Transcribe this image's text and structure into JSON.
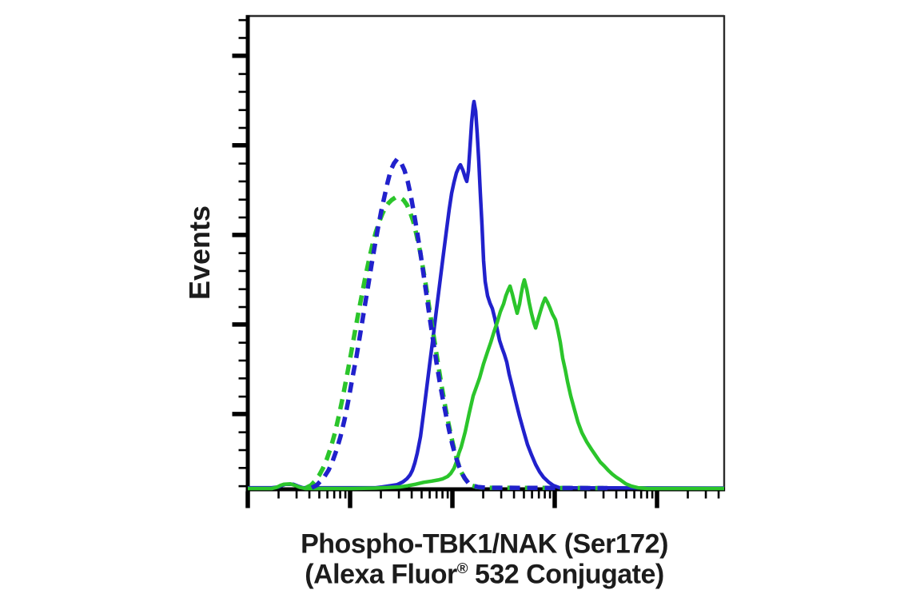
{
  "figure": {
    "background": "#ffffff"
  },
  "labels": {
    "y_axis": "Events",
    "x_axis_line1": "Phospho-TBK1/NAK (Ser172)",
    "x_axis_line2_pre": "(Alexa Fluor",
    "x_axis_line2_sup": "®",
    "x_axis_line2_post": " 532 Conjugate)"
  },
  "colors": {
    "blue": "#2121cc",
    "green": "#2bc52b",
    "axis": "#000000",
    "frame": "#2b2b2b",
    "text": "#1c1c1c"
  },
  "chart_data": {
    "type": "line",
    "title": "",
    "xlabel": "Phospho-TBK1/NAK (Ser172) (Alexa Fluor® 532 Conjugate)",
    "ylabel": "Events",
    "x_scale": "log",
    "x_units": "decades (fluorescence intensity, unlabeled log axis)",
    "x_range_decades": [
      0,
      4.656
    ],
    "y_scale": "linear",
    "y_units": "percent of maximum event count (unlabeled axis)",
    "y_range": [
      0,
      103
    ],
    "grid": false,
    "legend": null,
    "x_axis_ticks": {
      "majors_dec": [
        0,
        1,
        2,
        3,
        4
      ],
      "minor_log_offsets": [
        0.301,
        0.477,
        0.602,
        0.699,
        0.778,
        0.845,
        0.903,
        0.954
      ],
      "max_dec": 4.62
    },
    "y_axis_ticks": {
      "majors_pct": [
        19.4,
        42.5,
        65.6,
        88.7,
        111.8
      ],
      "minors_pct": [
        0.8,
        5.5,
        10.1,
        14.7,
        23.9,
        28.6,
        33.2,
        37.8,
        47.0,
        51.6,
        56.3,
        60.9,
        70.1,
        74.7,
        79.4,
        84.0,
        93.2,
        97.8,
        102.5,
        107.1,
        116.4,
        121.0
      ]
    },
    "series": [
      {
        "id": "histogram-blue-solid",
        "style": "solid",
        "color_key": "blue",
        "points": [
          [
            0,
            0.4
          ],
          [
            0.234,
            0.4
          ],
          [
            0.297,
            0.6
          ],
          [
            0.336,
            1.0
          ],
          [
            0.367,
            1.3
          ],
          [
            0.445,
            1.3
          ],
          [
            0.492,
            0.8
          ],
          [
            0.539,
            0.4
          ],
          [
            1.094,
            0.4
          ],
          [
            1.25,
            0.4
          ],
          [
            1.313,
            0.6
          ],
          [
            1.391,
            0.9
          ],
          [
            1.461,
            1.2
          ],
          [
            1.516,
            1.9
          ],
          [
            1.555,
            2.7
          ],
          [
            1.586,
            3.7
          ],
          [
            1.609,
            4.9
          ],
          [
            1.633,
            6.8
          ],
          [
            1.656,
            9.3
          ],
          [
            1.688,
            13.6
          ],
          [
            1.719,
            19.8
          ],
          [
            1.75,
            26.4
          ],
          [
            1.781,
            33.0
          ],
          [
            1.813,
            39.6
          ],
          [
            1.844,
            46.2
          ],
          [
            1.875,
            52.8
          ],
          [
            1.906,
            59.4
          ],
          [
            1.938,
            66.0
          ],
          [
            1.969,
            72.2
          ],
          [
            1.992,
            76.3
          ],
          [
            2.016,
            79.2
          ],
          [
            2.039,
            81.6
          ],
          [
            2.063,
            83.1
          ],
          [
            2.078,
            83.7
          ],
          [
            2.102,
            82.3
          ],
          [
            2.125,
            80.4
          ],
          [
            2.141,
            79.4
          ],
          [
            2.156,
            82.1
          ],
          [
            2.172,
            88.2
          ],
          [
            2.188,
            94.8
          ],
          [
            2.203,
            98.8
          ],
          [
            2.211,
            100.0
          ],
          [
            2.227,
            97.5
          ],
          [
            2.242,
            91.8
          ],
          [
            2.258,
            84.7
          ],
          [
            2.273,
            76.5
          ],
          [
            2.289,
            68.2
          ],
          [
            2.305,
            59.0
          ],
          [
            2.32,
            53.6
          ],
          [
            2.344,
            49.9
          ],
          [
            2.367,
            48.0
          ],
          [
            2.391,
            46.6
          ],
          [
            2.414,
            44.1
          ],
          [
            2.438,
            41.2
          ],
          [
            2.461,
            38.4
          ],
          [
            2.484,
            36.5
          ],
          [
            2.508,
            34.8
          ],
          [
            2.531,
            32.8
          ],
          [
            2.555,
            29.7
          ],
          [
            2.586,
            26.4
          ],
          [
            2.617,
            22.9
          ],
          [
            2.656,
            18.8
          ],
          [
            2.695,
            15.1
          ],
          [
            2.734,
            11.5
          ],
          [
            2.773,
            8.9
          ],
          [
            2.813,
            6.4
          ],
          [
            2.852,
            4.5
          ],
          [
            2.891,
            3.1
          ],
          [
            2.938,
            1.9
          ],
          [
            2.984,
            1.0
          ],
          [
            3.047,
            0.4
          ],
          [
            4.656,
            0.3
          ]
        ]
      },
      {
        "id": "histogram-green-solid",
        "style": "solid",
        "color_key": "green",
        "points": [
          [
            0,
            0.2
          ],
          [
            0.234,
            0.2
          ],
          [
            0.281,
            0.5
          ],
          [
            0.32,
            1.0
          ],
          [
            0.352,
            1.3
          ],
          [
            0.414,
            1.4
          ],
          [
            0.461,
            1.0
          ],
          [
            0.508,
            0.5
          ],
          [
            0.563,
            0.2
          ],
          [
            1.016,
            0.2
          ],
          [
            1.25,
            0.3
          ],
          [
            1.484,
            0.6
          ],
          [
            1.563,
            0.9
          ],
          [
            1.641,
            1.3
          ],
          [
            1.719,
            1.8
          ],
          [
            1.797,
            2.1
          ],
          [
            1.859,
            2.4
          ],
          [
            1.906,
            2.7
          ],
          [
            1.953,
            3.3
          ],
          [
            1.984,
            4.1
          ],
          [
            2.016,
            5.4
          ],
          [
            2.039,
            7.0
          ],
          [
            2.063,
            9.3
          ],
          [
            2.086,
            10.9
          ],
          [
            2.125,
            14.8
          ],
          [
            2.164,
            19.6
          ],
          [
            2.203,
            24.1
          ],
          [
            2.234,
            26.4
          ],
          [
            2.266,
            28.7
          ],
          [
            2.305,
            32.4
          ],
          [
            2.344,
            35.5
          ],
          [
            2.375,
            37.9
          ],
          [
            2.406,
            40.6
          ],
          [
            2.438,
            43.1
          ],
          [
            2.469,
            45.8
          ],
          [
            2.5,
            47.8
          ],
          [
            2.523,
            49.9
          ],
          [
            2.547,
            51.5
          ],
          [
            2.563,
            52.4
          ],
          [
            2.586,
            50.3
          ],
          [
            2.609,
            47.8
          ],
          [
            2.633,
            45.4
          ],
          [
            2.656,
            47.8
          ],
          [
            2.672,
            50.3
          ],
          [
            2.688,
            52.6
          ],
          [
            2.703,
            54.0
          ],
          [
            2.727,
            51.5
          ],
          [
            2.75,
            48.2
          ],
          [
            2.773,
            45.4
          ],
          [
            2.797,
            42.9
          ],
          [
            2.813,
            41.6
          ],
          [
            2.836,
            43.7
          ],
          [
            2.859,
            45.8
          ],
          [
            2.883,
            47.8
          ],
          [
            2.906,
            49.3
          ],
          [
            2.93,
            48.2
          ],
          [
            2.953,
            46.8
          ],
          [
            2.977,
            45.2
          ],
          [
            3.008,
            43.7
          ],
          [
            3.031,
            41.0
          ],
          [
            3.055,
            37.9
          ],
          [
            3.078,
            33.8
          ],
          [
            3.102,
            30.9
          ],
          [
            3.125,
            27.8
          ],
          [
            3.156,
            24.1
          ],
          [
            3.188,
            21.0
          ],
          [
            3.227,
            17.3
          ],
          [
            3.266,
            14.6
          ],
          [
            3.313,
            12.2
          ],
          [
            3.359,
            10.3
          ],
          [
            3.406,
            8.5
          ],
          [
            3.445,
            7.0
          ],
          [
            3.484,
            6.0
          ],
          [
            3.523,
            4.9
          ],
          [
            3.563,
            3.9
          ],
          [
            3.602,
            3.1
          ],
          [
            3.648,
            2.3
          ],
          [
            3.695,
            1.4
          ],
          [
            3.75,
            0.8
          ],
          [
            3.813,
            0.4
          ],
          [
            3.906,
            0.2
          ],
          [
            4.656,
            0.2
          ]
        ]
      },
      {
        "id": "histogram-green-dashed",
        "style": "dashed",
        "color_key": "green",
        "points": [
          [
            0.57,
            0.4
          ],
          [
            0.617,
            1.0
          ],
          [
            0.656,
            2.1
          ],
          [
            0.695,
            3.5
          ],
          [
            0.734,
            5.4
          ],
          [
            0.773,
            7.8
          ],
          [
            0.813,
            10.9
          ],
          [
            0.852,
            14.6
          ],
          [
            0.891,
            19.0
          ],
          [
            0.93,
            23.9
          ],
          [
            0.969,
            29.3
          ],
          [
            1.008,
            34.8
          ],
          [
            1.047,
            40.6
          ],
          [
            1.086,
            46.2
          ],
          [
            1.125,
            51.5
          ],
          [
            1.156,
            55.7
          ],
          [
            1.188,
            59.6
          ],
          [
            1.219,
            63.1
          ],
          [
            1.25,
            66.2
          ],
          [
            1.281,
            68.7
          ],
          [
            1.313,
            70.9
          ],
          [
            1.344,
            72.6
          ],
          [
            1.375,
            73.8
          ],
          [
            1.406,
            74.6
          ],
          [
            1.445,
            75.3
          ],
          [
            1.484,
            75.3
          ],
          [
            1.523,
            74.6
          ],
          [
            1.555,
            73.4
          ],
          [
            1.586,
            71.5
          ],
          [
            1.617,
            69.1
          ],
          [
            1.648,
            65.8
          ],
          [
            1.68,
            61.9
          ],
          [
            1.711,
            57.3
          ],
          [
            1.742,
            52.4
          ],
          [
            1.773,
            47.0
          ],
          [
            1.805,
            41.6
          ],
          [
            1.836,
            36.3
          ],
          [
            1.867,
            31.1
          ],
          [
            1.898,
            26.2
          ],
          [
            1.93,
            21.4
          ],
          [
            1.961,
            17.1
          ],
          [
            1.992,
            13.2
          ],
          [
            2.023,
            9.7
          ],
          [
            2.055,
            6.8
          ],
          [
            2.086,
            4.5
          ],
          [
            2.117,
            2.9
          ],
          [
            2.148,
            1.9
          ],
          [
            2.188,
            1.0
          ],
          [
            2.234,
            0.6
          ],
          [
            2.313,
            0.4
          ],
          [
            3.477,
            0.3
          ]
        ]
      },
      {
        "id": "histogram-blue-dashed",
        "style": "dashed",
        "color_key": "blue",
        "points": [
          [
            0.625,
            0.4
          ],
          [
            0.672,
            1.0
          ],
          [
            0.711,
            2.1
          ],
          [
            0.75,
            3.3
          ],
          [
            0.789,
            4.9
          ],
          [
            0.828,
            7.2
          ],
          [
            0.867,
            10.1
          ],
          [
            0.906,
            13.6
          ],
          [
            0.945,
            17.9
          ],
          [
            0.984,
            23.1
          ],
          [
            1.023,
            28.7
          ],
          [
            1.063,
            34.4
          ],
          [
            1.102,
            40.6
          ],
          [
            1.141,
            46.8
          ],
          [
            1.18,
            53.0
          ],
          [
            1.211,
            58.1
          ],
          [
            1.242,
            62.9
          ],
          [
            1.273,
            67.4
          ],
          [
            1.305,
            71.8
          ],
          [
            1.336,
            75.5
          ],
          [
            1.367,
            79.2
          ],
          [
            1.398,
            82.3
          ],
          [
            1.43,
            84.1
          ],
          [
            1.461,
            85.2
          ],
          [
            1.5,
            84.1
          ],
          [
            1.531,
            82.3
          ],
          [
            1.563,
            79.4
          ],
          [
            1.594,
            75.7
          ],
          [
            1.625,
            71.1
          ],
          [
            1.656,
            66.2
          ],
          [
            1.688,
            60.8
          ],
          [
            1.719,
            55.3
          ],
          [
            1.75,
            49.5
          ],
          [
            1.781,
            43.7
          ],
          [
            1.813,
            38.1
          ],
          [
            1.844,
            32.8
          ],
          [
            1.875,
            27.8
          ],
          [
            1.906,
            23.3
          ],
          [
            1.938,
            19.0
          ],
          [
            1.969,
            15.1
          ],
          [
            2.0,
            11.5
          ],
          [
            2.031,
            8.5
          ],
          [
            2.063,
            6.0
          ],
          [
            2.094,
            4.1
          ],
          [
            2.125,
            2.7
          ],
          [
            2.156,
            1.6
          ],
          [
            2.195,
            1.0
          ],
          [
            2.25,
            0.6
          ],
          [
            2.344,
            0.4
          ],
          [
            3.516,
            0.3
          ]
        ]
      }
    ]
  }
}
